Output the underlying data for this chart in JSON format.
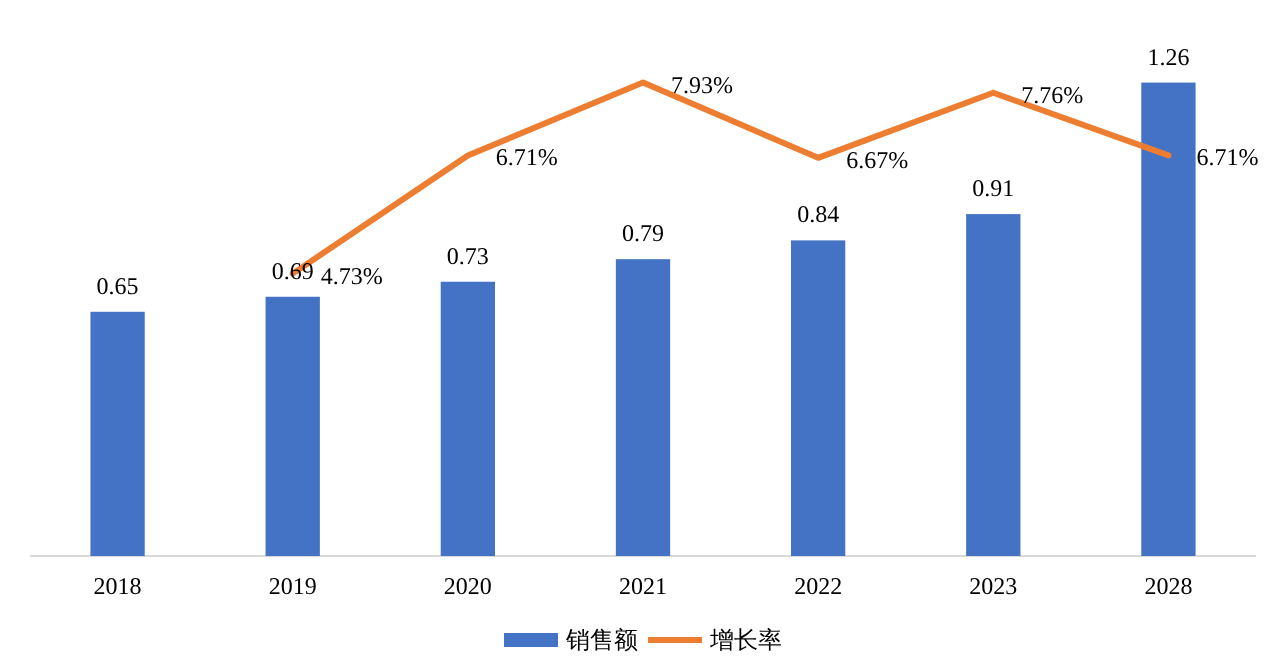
{
  "chart_data": {
    "type": "bar",
    "categories": [
      "2018",
      "2019",
      "2020",
      "2021",
      "2022",
      "2023",
      "2028"
    ],
    "series": [
      {
        "name": "销售额",
        "color": "#4472c4",
        "values": [
          0.65,
          0.69,
          0.73,
          0.79,
          0.84,
          0.91,
          1.26
        ]
      },
      {
        "name": "增长率",
        "type": "line",
        "axis": "y2",
        "color": "#ed7d31",
        "values": [
          null,
          4.73,
          6.71,
          7.93,
          6.67,
          7.76,
          6.71
        ],
        "value_labels": [
          null,
          "4.73%",
          "6.71%",
          "7.93%",
          "6.67%",
          "7.76%",
          "6.71%"
        ]
      }
    ],
    "data_labels": true,
    "tick_labels": "x",
    "legend": "bottom"
  }
}
